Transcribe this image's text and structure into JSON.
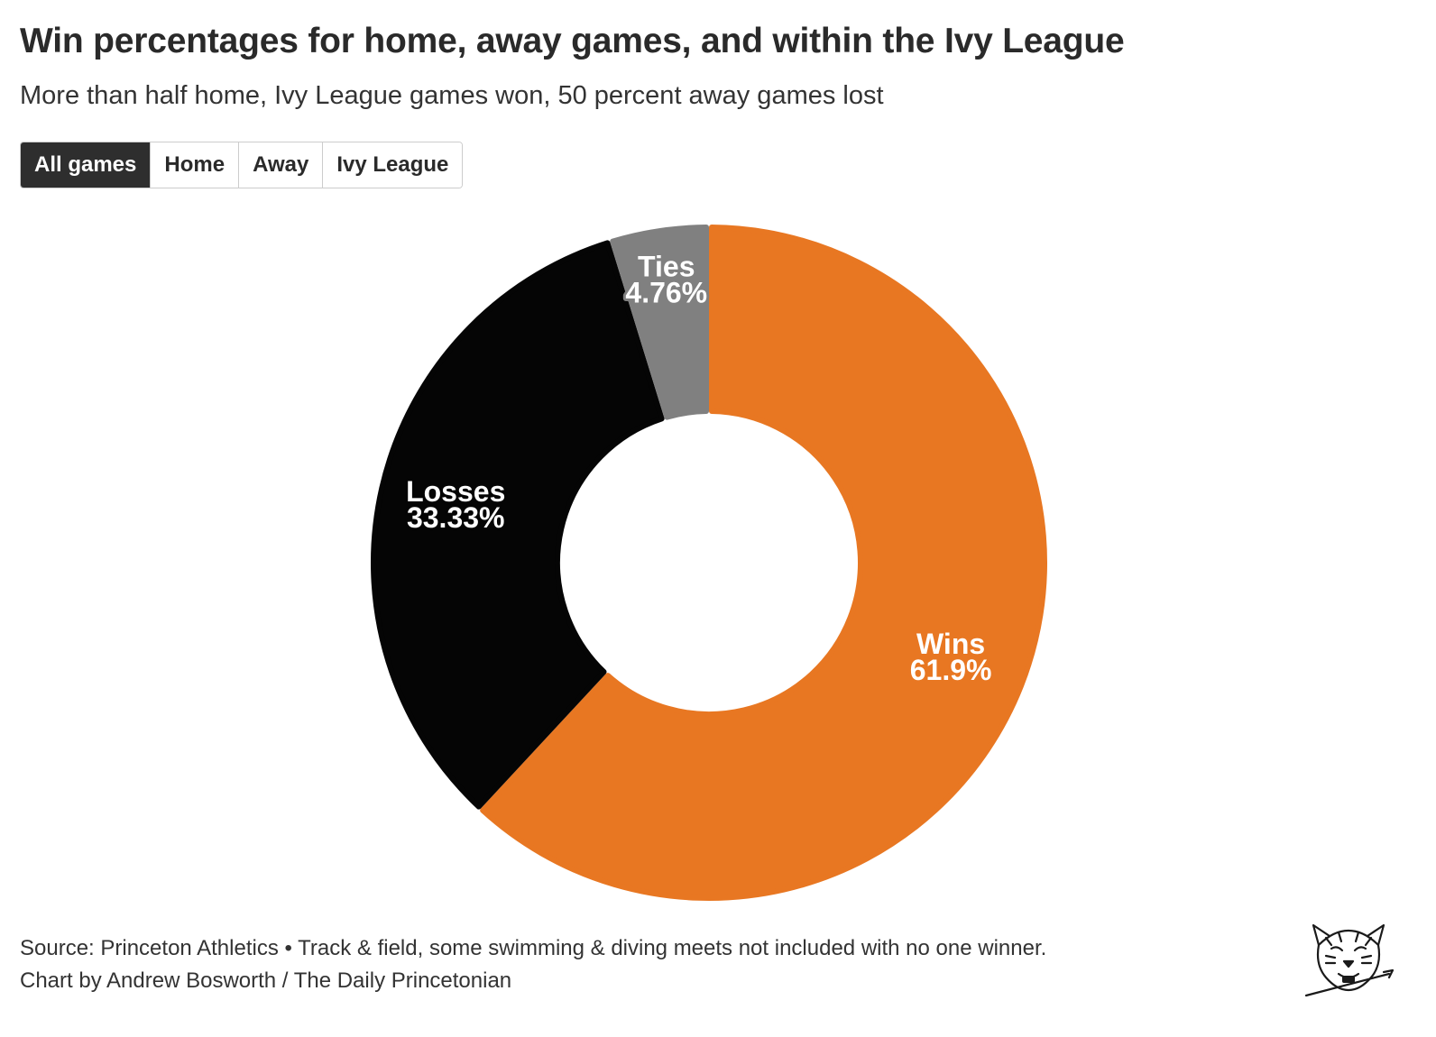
{
  "header": {
    "title": "Win percentages for home, away games, and within the Ivy League",
    "subtitle": "More than half home, Ivy League games won, 50 percent away games lost"
  },
  "tabs": [
    {
      "label": "All games",
      "active": true
    },
    {
      "label": "Home",
      "active": false
    },
    {
      "label": "Away",
      "active": false
    },
    {
      "label": "Ivy League",
      "active": false
    }
  ],
  "chart_data": {
    "type": "pie",
    "variant": "donut",
    "slices": [
      {
        "name": "Wins",
        "value": 61.9,
        "label": "61.9%",
        "color": "#e87722"
      },
      {
        "name": "Losses",
        "value": 33.33,
        "label": "33.33%",
        "color": "#050505"
      },
      {
        "name": "Ties",
        "value": 4.76,
        "label": "4.76%",
        "color": "#808080"
      }
    ],
    "start": "top",
    "direction": "clockwise"
  },
  "footer": {
    "source": "Source: Princeton Athletics • Track & field, some swimming & diving meets not included with no one winner.",
    "credit": "Chart by Andrew Bosworth / The Daily Princetonian"
  },
  "logo": {
    "icon": "tiger-head-logo-icon"
  }
}
